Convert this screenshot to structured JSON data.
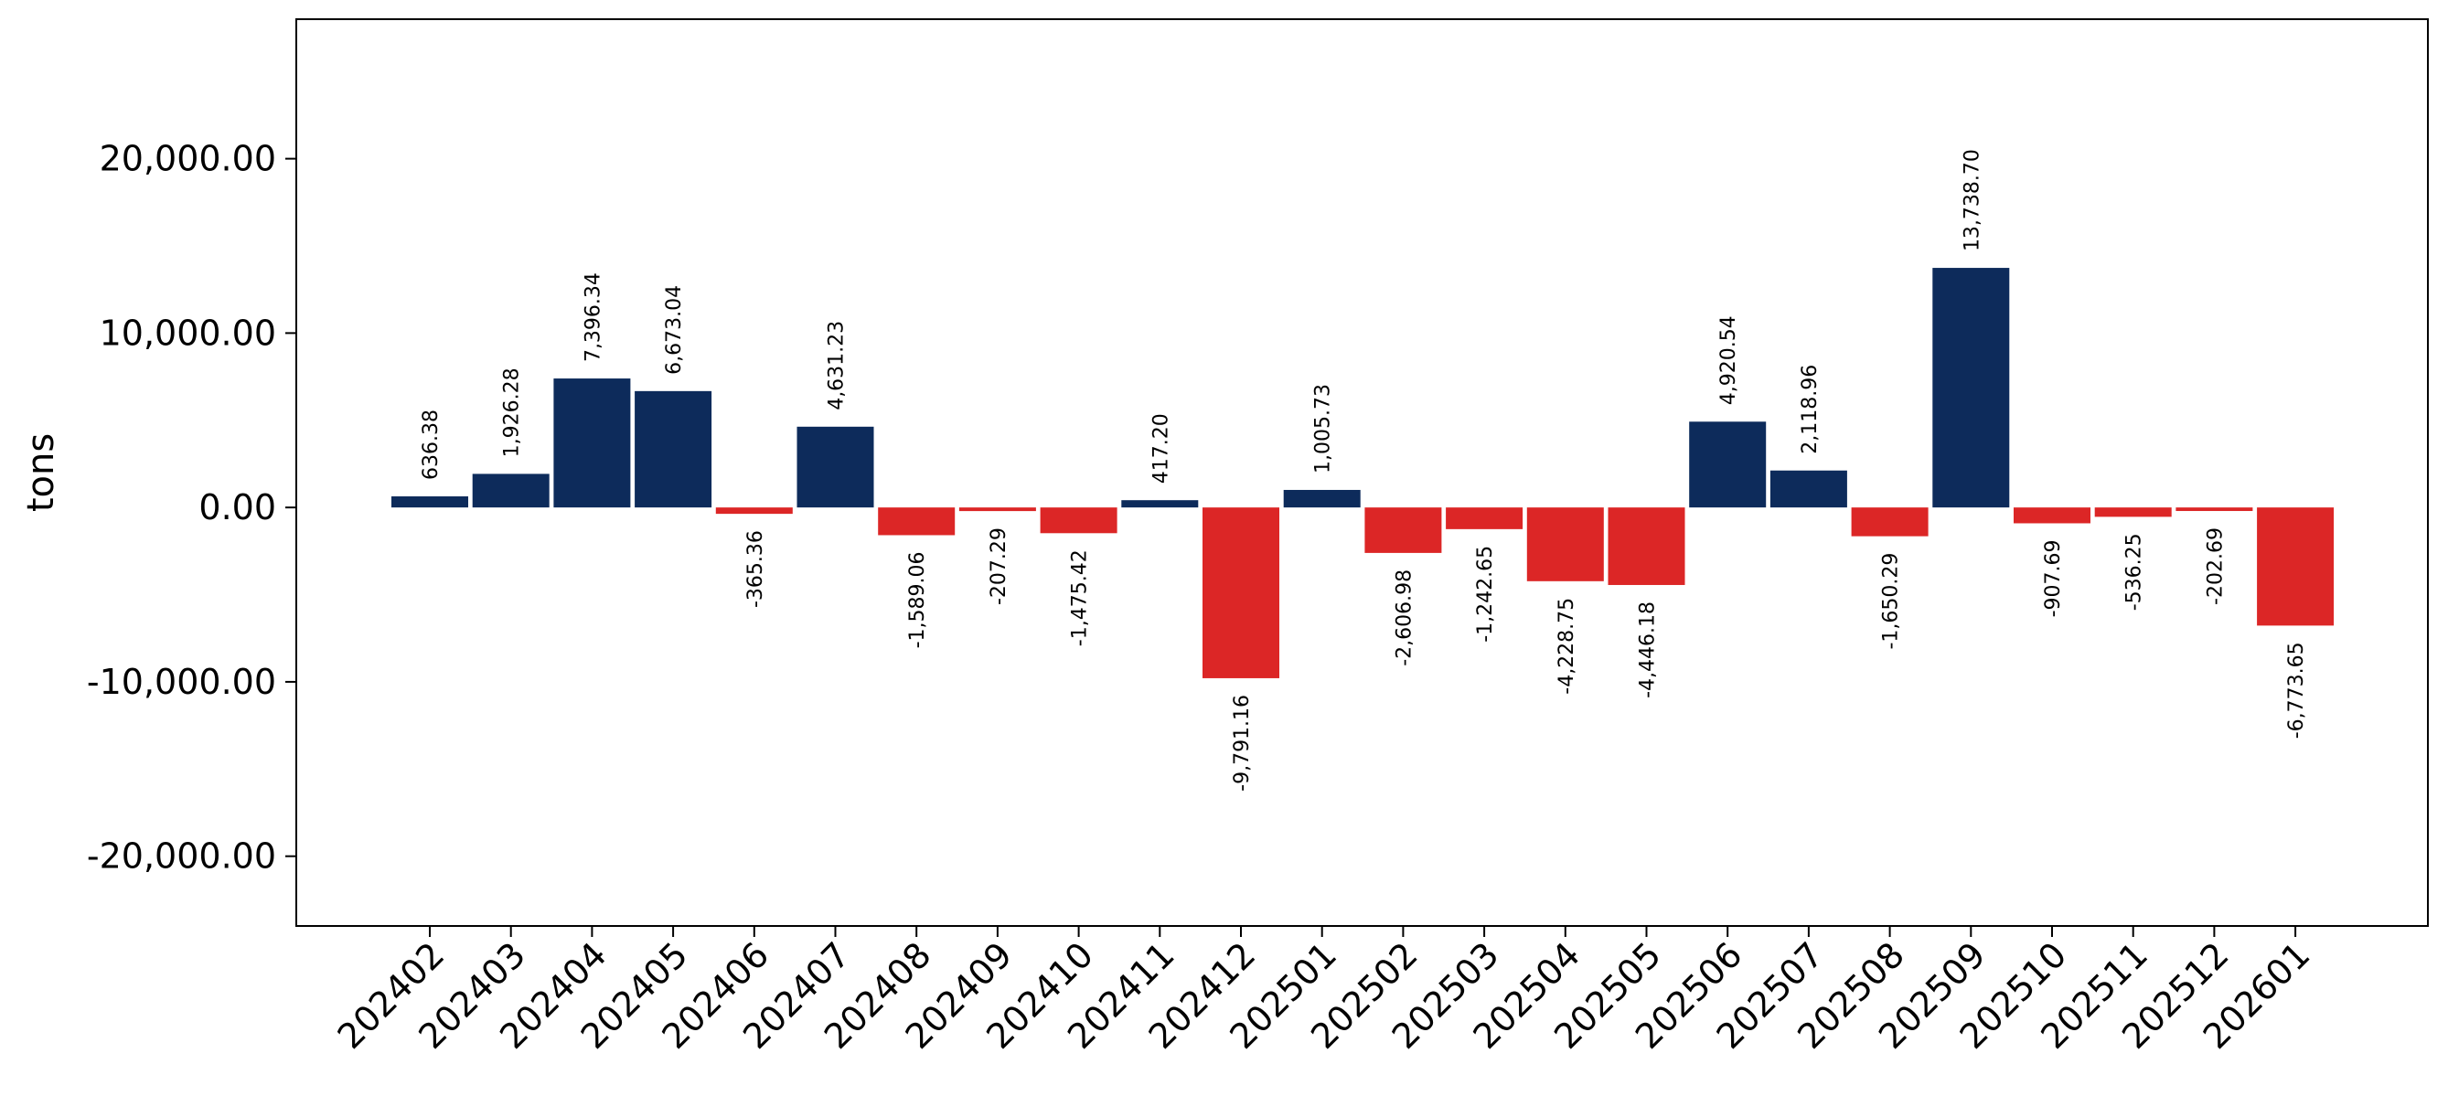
{
  "chart_data": {
    "type": "bar",
    "ylabel": "tons",
    "xlabel": "",
    "title": "",
    "ylim": [
      -24000,
      28000
    ],
    "yticks": [
      -20000,
      -10000,
      0,
      10000,
      20000
    ],
    "ytick_labels": [
      "-20,000.00",
      "-10,000.00",
      "0.00",
      "10,000.00",
      "20,000.00"
    ],
    "categories": [
      "202402",
      "202403",
      "202404",
      "202405",
      "202406",
      "202407",
      "202408",
      "202409",
      "202410",
      "202411",
      "202412",
      "202501",
      "202502",
      "202503",
      "202504",
      "202505",
      "202506",
      "202507",
      "202508",
      "202509",
      "202510",
      "202511",
      "202512",
      "202601"
    ],
    "values": [
      636.38,
      1926.28,
      7396.34,
      6673.04,
      -365.36,
      4631.23,
      -1589.06,
      -207.29,
      -1475.42,
      417.2,
      -9791.16,
      1005.73,
      -2606.98,
      -1242.65,
      -4228.75,
      -4446.18,
      4920.54,
      2118.96,
      -1650.29,
      13738.7,
      -907.69,
      -536.25,
      -202.69,
      -6773.65
    ],
    "value_labels": [
      "636.38",
      "1,926.28",
      "7,396.34",
      "6,673.04",
      "-365.36",
      "4,631.23",
      "-1,589.06",
      "-207.29",
      "-1,475.42",
      "417.20",
      "-9,791.16",
      "1,005.73",
      "-2,606.98",
      "-1,242.65",
      "-4,228.75",
      "-4,446.18",
      "4,920.54",
      "2,118.96",
      "-1,650.29",
      "13,738.70",
      "-907.69",
      "-536.25",
      "-202.69",
      "-6,773.65"
    ],
    "colors": {
      "positive": "#0d2b5b",
      "negative": "#dc2626"
    },
    "grid": false,
    "legend": "none"
  }
}
